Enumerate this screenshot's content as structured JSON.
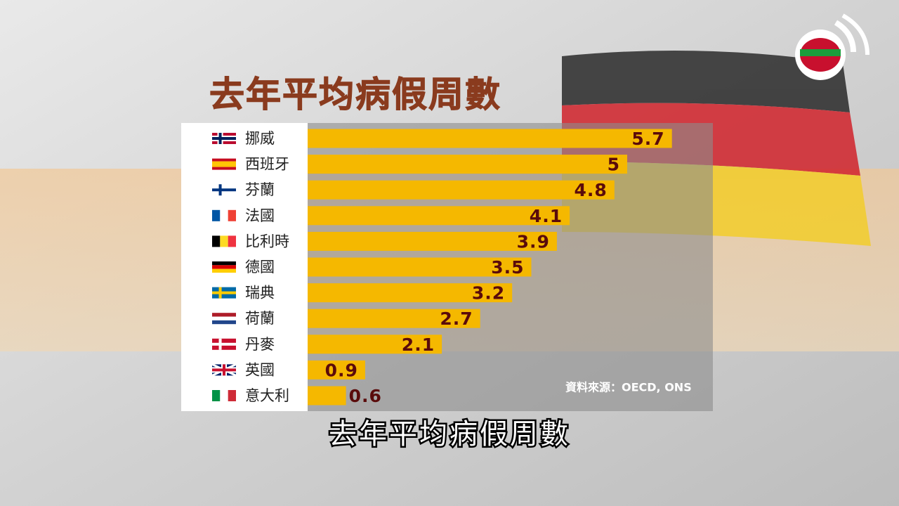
{
  "chart_data": {
    "type": "bar",
    "orientation": "horizontal",
    "title": "去年平均病假周數",
    "categories": [
      "挪威",
      "西班牙",
      "芬蘭",
      "法國",
      "比利時",
      "德國",
      "瑞典",
      "荷蘭",
      "丹麥",
      "英國",
      "意大利"
    ],
    "values": [
      5.7,
      5,
      4.8,
      4.1,
      3.9,
      3.5,
      3.2,
      2.7,
      2.1,
      0.9,
      0.6
    ],
    "color": "#f5b800",
    "source": "資料來源：OECD, ONS",
    "caption": "去年平均病假周數"
  }
}
